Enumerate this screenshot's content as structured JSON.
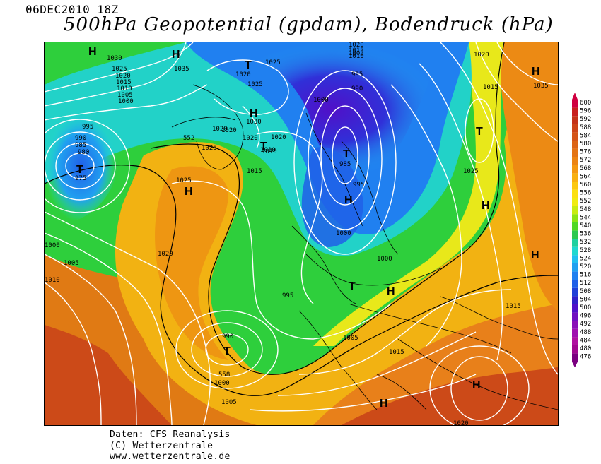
{
  "header": {
    "datetime": "06DEC2010 18Z",
    "title": "500hPa Geopotential (gpdam), Bodendruck (hPa)"
  },
  "map": {
    "pressure_centers": [
      {
        "type": "H"
      },
      {
        "type": "H"
      },
      {
        "type": "T"
      },
      {
        "type": "H"
      },
      {
        "type": "T"
      },
      {
        "type": "T"
      },
      {
        "type": "H"
      },
      {
        "type": "T"
      },
      {
        "type": "H"
      },
      {
        "type": "H"
      },
      {
        "type": "T"
      },
      {
        "type": "H"
      },
      {
        "type": "H"
      },
      {
        "type": "H"
      },
      {
        "type": "T"
      },
      {
        "type": "T"
      },
      {
        "type": "H"
      },
      {
        "type": "H"
      }
    ],
    "isobar_labels": [
      "1030",
      "1035",
      "1025",
      "1020",
      "1015",
      "1010",
      "1005",
      "1000",
      "1020",
      "1025",
      "1025",
      "1030",
      "1020",
      "1015",
      "1010",
      "1005",
      "995",
      "990",
      "1000",
      "1020",
      "1015",
      "1010",
      "1020",
      "995",
      "990",
      "985",
      "980",
      "975",
      "1025",
      "1020",
      "1025",
      "1010",
      "1015",
      "1020",
      "1025",
      "985",
      "995",
      "1000",
      "1000",
      "1000",
      "1005",
      "1010",
      "1020",
      "995",
      "990",
      "1000",
      "1005",
      "1005",
      "1015",
      "1015",
      "1020",
      "1035",
      "1020"
    ],
    "geopotential_labels": [
      "552",
      "558"
    ]
  },
  "legend": {
    "values": [
      "600",
      "596",
      "592",
      "588",
      "584",
      "580",
      "576",
      "572",
      "568",
      "564",
      "560",
      "556",
      "552",
      "548",
      "544",
      "540",
      "536",
      "532",
      "528",
      "524",
      "520",
      "516",
      "512",
      "508",
      "504",
      "500",
      "496",
      "492",
      "488",
      "484",
      "480",
      "476"
    ],
    "colors": [
      "#d00040",
      "#c8201e",
      "#c43218",
      "#cc4418",
      "#d45418",
      "#dc6416",
      "#e47414",
      "#ec8412",
      "#f49810",
      "#f8b010",
      "#fcc810",
      "#fce010",
      "#f0ec10",
      "#c8ec10",
      "#8ce414",
      "#50d824",
      "#2cc850",
      "#20d0a0",
      "#20d8d0",
      "#20c0f0",
      "#20a0f0",
      "#2080f0",
      "#2060e8",
      "#2040d8",
      "#3020c8",
      "#5010c8",
      "#7010c0",
      "#8a10b8",
      "#a010b0",
      "#b010a0",
      "#a00890",
      "#7a0080"
    ]
  },
  "footer": {
    "line1": "Daten: CFS Reanalysis",
    "line2": "(C) Wetterzentrale",
    "line3": "www.wetterzentrale.de"
  }
}
